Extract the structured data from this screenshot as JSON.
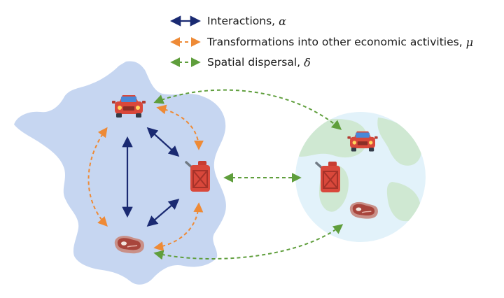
{
  "legend": [
    {
      "label": "Interactions,",
      "symbol": "α",
      "color": "#1a2a72",
      "style": "solid-double"
    },
    {
      "label": "Transformations into other economic activities,",
      "symbol": "μ",
      "color": "#ee8a36",
      "style": "dashed-double"
    },
    {
      "label": "Spatial dispersal,",
      "symbol": "δ",
      "color": "#5f9e3c",
      "style": "dashed-double"
    }
  ],
  "nodes_france": [
    "car-icon",
    "fuel-can-icon",
    "steak-icon"
  ],
  "nodes_globe": [
    "car-icon",
    "fuel-can-icon",
    "steak-icon"
  ],
  "colors": {
    "france": "#c6d6f1",
    "globe_water": "#e2f2fa",
    "globe_land": "#cfe8d2",
    "interaction": "#1a2a72",
    "transformation": "#ee8a36",
    "dispersal": "#5f9e3c"
  }
}
